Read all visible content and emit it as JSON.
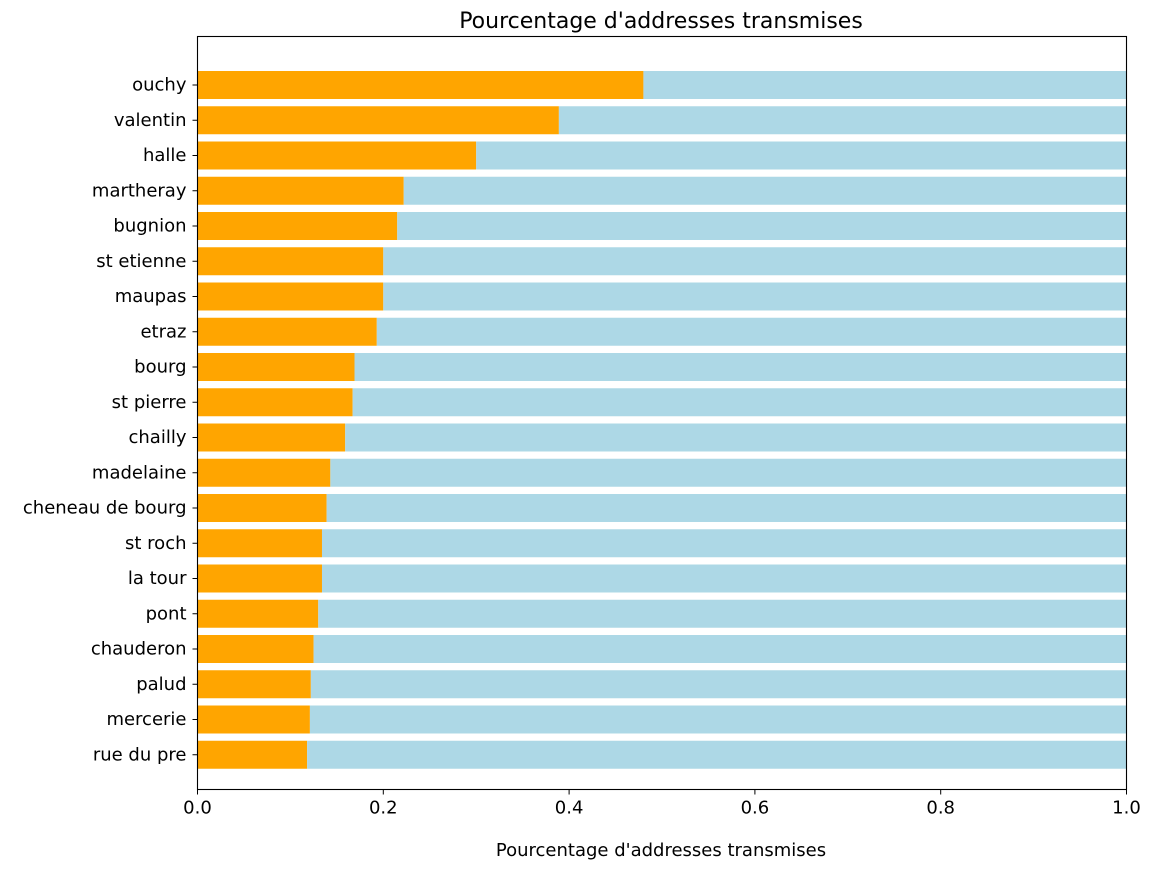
{
  "chart_data": {
    "type": "bar",
    "orientation": "horizontal",
    "stacked": true,
    "title": "Pourcentage d'addresses transmises",
    "xlabel": "Pourcentage d'addresses transmises",
    "ylabel": "",
    "xlim": [
      0.0,
      1.0
    ],
    "xticks": [
      "0.0",
      "0.2",
      "0.4",
      "0.6",
      "0.8",
      "1.0"
    ],
    "grid": false,
    "categories": [
      "ouchy",
      "valentin",
      "halle",
      "martheray",
      "bugnion",
      "st etienne",
      "maupas",
      "etraz",
      "bourg",
      "st pierre",
      "chailly",
      "madelaine",
      "cheneau de bourg",
      "st roch",
      "la tour",
      "pont",
      "chauderon",
      "palud",
      "mercerie",
      "rue du pre"
    ],
    "series": [
      {
        "color": "#ffa500",
        "values": [
          0.48,
          0.389,
          0.3,
          0.222,
          0.215,
          0.2,
          0.2,
          0.193,
          0.169,
          0.167,
          0.159,
          0.143,
          0.139,
          0.134,
          0.134,
          0.13,
          0.125,
          0.122,
          0.121,
          0.118
        ]
      },
      {
        "color": "#add8e6",
        "values": [
          0.52,
          0.611,
          0.7,
          0.778,
          0.785,
          0.8,
          0.8,
          0.807,
          0.831,
          0.833,
          0.841,
          0.857,
          0.861,
          0.866,
          0.866,
          0.87,
          0.875,
          0.878,
          0.879,
          0.882
        ]
      }
    ]
  }
}
